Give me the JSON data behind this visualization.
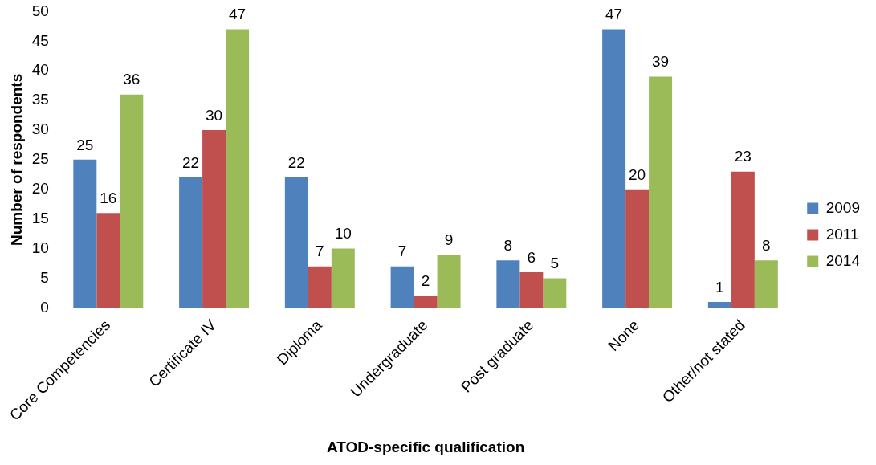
{
  "chart_data": {
    "type": "bar",
    "xlabel": "ATOD-specific qualification",
    "ylabel": "Number of respondents",
    "categories": [
      "Core Competencies",
      "Certificate IV",
      "Diploma",
      "Undergraduate",
      "Post graduate",
      "None",
      "Other/not stated"
    ],
    "series": [
      {
        "name": "2009",
        "color": "#4f81bd",
        "values": [
          25,
          22,
          22,
          7,
          8,
          47,
          1
        ]
      },
      {
        "name": "2011",
        "color": "#c0504d",
        "values": [
          16,
          30,
          7,
          2,
          6,
          20,
          23
        ]
      },
      {
        "name": "2014",
        "color": "#9bbb59",
        "values": [
          36,
          47,
          10,
          9,
          5,
          39,
          8
        ]
      }
    ],
    "ylim": [
      0,
      50
    ],
    "yticks": [
      0,
      5,
      10,
      15,
      20,
      25,
      30,
      35,
      40,
      45,
      50
    ],
    "grid": false,
    "legend": "right",
    "data_labels": true
  }
}
